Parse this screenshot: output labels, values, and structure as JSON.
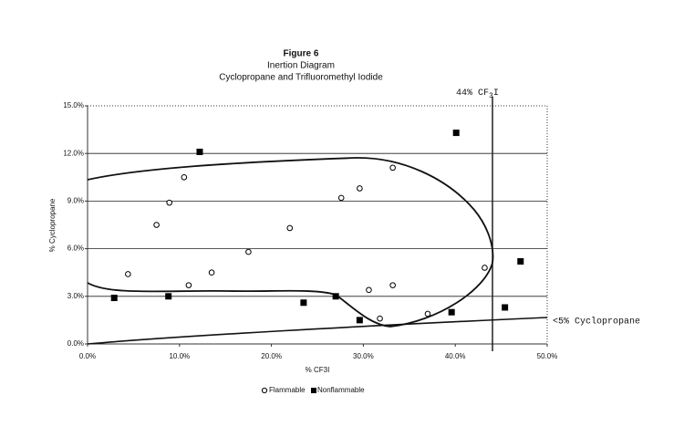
{
  "chart_data": {
    "type": "scatter",
    "title": "Figure 6",
    "subtitle": [
      "Inertion Diagram",
      "Cyclopropane and Trifluoromethyl Iodide"
    ],
    "x_label": "% CF3I",
    "y_label": "% Cyclopropane",
    "xlim": [
      0,
      50
    ],
    "ylim": [
      0,
      15
    ],
    "xticks": [
      {
        "value": 0,
        "label": "0.0%"
      },
      {
        "value": 10,
        "label": "10.0%"
      },
      {
        "value": 20,
        "label": "20.0%"
      },
      {
        "value": 30,
        "label": "30.0%"
      },
      {
        "value": 40,
        "label": "40.0%"
      },
      {
        "value": 50,
        "label": "50.0%"
      }
    ],
    "yticks": [
      {
        "value": 0,
        "label": "0.0%"
      },
      {
        "value": 3,
        "label": "3.0%"
      },
      {
        "value": 6,
        "label": "6.0%"
      },
      {
        "value": 9,
        "label": "9.0%"
      },
      {
        "value": 12,
        "label": "12.0%"
      },
      {
        "value": 15,
        "label": "15.0%"
      }
    ],
    "grid": true,
    "series": [
      {
        "name": "Flammable",
        "color": "#000000",
        "marker": "open-circle",
        "x": [
          4.4,
          7.5,
          8.9,
          10.5,
          11.0,
          13.5,
          17.5,
          22.0,
          27.6,
          29.6,
          30.6,
          31.8,
          33.2,
          33.2,
          37.0,
          43.2
        ],
        "values": [
          4.4,
          7.5,
          8.9,
          10.5,
          3.7,
          4.5,
          5.8,
          7.3,
          9.2,
          9.8,
          3.4,
          1.6,
          11.1,
          3.7,
          1.9,
          4.8
        ]
      },
      {
        "name": "Nonflammable",
        "color": "#000000",
        "marker": "filled-square",
        "x": [
          2.9,
          8.8,
          12.2,
          23.5,
          27.0,
          29.6,
          39.6,
          40.1,
          45.4,
          47.1
        ],
        "values": [
          2.9,
          3.0,
          12.1,
          2.6,
          3.0,
          1.5,
          2.0,
          13.3,
          2.3,
          5.2
        ]
      }
    ],
    "annotations": [
      {
        "parts": [
          "44% CF",
          "3",
          "I"
        ]
      },
      {
        "text": "<5% Cyclopropane"
      }
    ]
  }
}
